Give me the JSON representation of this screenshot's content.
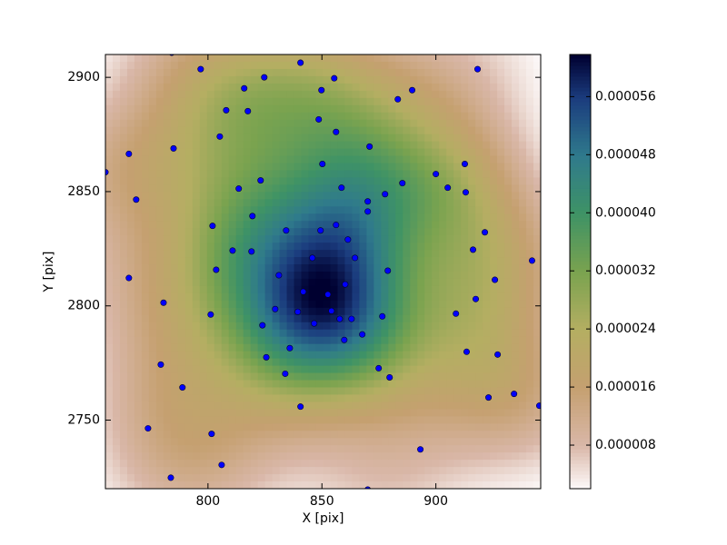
{
  "chart_data": {
    "type": "scatter",
    "xlabel": "X [pix]",
    "ylabel": "Y [pix]",
    "xlim": [
      755,
      946
    ],
    "ylim": [
      2720,
      2910
    ],
    "xticks": [
      800,
      850,
      900
    ],
    "yticks": [
      2750,
      2800,
      2850,
      2900
    ],
    "color": "#0000ff",
    "colorbar": {
      "clim": [
        2e-06,
        6.18e-05
      ],
      "ticks": [
        {
          "value": 8e-06,
          "label": "0.000008"
        },
        {
          "value": 1.6e-05,
          "label": "0.000016"
        },
        {
          "value": 2.4e-05,
          "label": "0.000024"
        },
        {
          "value": 3.2e-05,
          "label": "0.000032"
        },
        {
          "value": 4e-05,
          "label": "0.000040"
        },
        {
          "value": 4.8e-05,
          "label": "0.000048"
        },
        {
          "value": 5.6e-05,
          "label": "0.000056"
        }
      ]
    },
    "x": [
      784.1,
      796.8,
      840.6,
      824.7,
      855.4,
      815.9,
      849.8,
      889.6,
      918.3,
      808.0,
      817.5,
      883.3,
      848.6,
      856.2,
      805.2,
      765.3,
      784.9,
      870.9,
      850.2,
      912.7,
      755.0,
      900.0,
      885.3,
      823.1,
      858.6,
      813.5,
      905.2,
      913.1,
      877.7,
      768.5,
      870.1,
      870.1,
      819.5,
      802.0,
      856.2,
      849.4,
      834.3,
      921.5,
      861.4,
      810.8,
      819.1,
      916.3,
      845.8,
      864.5,
      942.2,
      803.6,
      878.9,
      831.1,
      765.3,
      925.9,
      860.2,
      841.8,
      852.6,
      917.5,
      780.5,
      829.5,
      839.4,
      854.2,
      801.2,
      908.8,
      876.5,
      857.8,
      863.0,
      846.6,
      823.9,
      867.7,
      859.8,
      835.9,
      913.5,
      927.1,
      825.6,
      779.3,
      874.9,
      833.9,
      879.7,
      788.8,
      934.3,
      923.1,
      840.6,
      945.4,
      773.7,
      801.6,
      893.2,
      806.0,
      783.7,
      870.1
    ],
    "y": [
      2910.8,
      2903.6,
      2906.4,
      2900.0,
      2899.6,
      2895.2,
      2894.4,
      2894.4,
      2903.6,
      2885.6,
      2885.2,
      2890.4,
      2881.6,
      2876.1,
      2874.1,
      2866.5,
      2868.9,
      2869.7,
      2862.1,
      2862.1,
      2858.5,
      2857.7,
      2853.7,
      2854.9,
      2851.7,
      2851.3,
      2851.7,
      2849.7,
      2848.9,
      2846.5,
      2845.7,
      2841.3,
      2839.3,
      2835.0,
      2835.4,
      2833.0,
      2833.0,
      2832.2,
      2829.0,
      2824.2,
      2823.8,
      2824.6,
      2821.0,
      2821.0,
      2819.8,
      2815.8,
      2815.4,
      2813.4,
      2812.2,
      2811.4,
      2809.4,
      2806.2,
      2805.0,
      2803.0,
      2801.4,
      2798.6,
      2797.4,
      2797.8,
      2796.2,
      2796.6,
      2795.4,
      2794.3,
      2794.3,
      2792.3,
      2791.5,
      2787.5,
      2785.1,
      2781.5,
      2779.9,
      2778.7,
      2777.5,
      2774.3,
      2772.7,
      2770.3,
      2768.7,
      2764.3,
      2761.5,
      2759.9,
      2755.9,
      2756.3,
      2746.4,
      2744.0,
      2737.2,
      2730.4,
      2724.8,
      2719.6
    ]
  }
}
